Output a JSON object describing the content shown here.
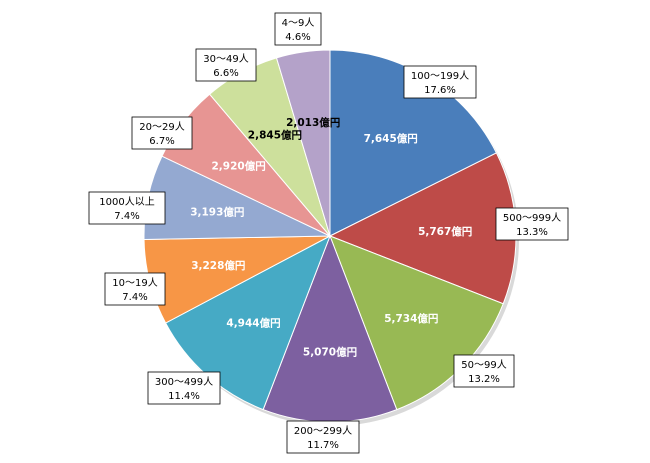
{
  "chart_data": {
    "type": "pie",
    "title": "",
    "slices": [
      {
        "category": "100〜199人",
        "value": 7645,
        "value_label": "7,645億円",
        "percent_label": "17.6%",
        "color": "#4a7ebb",
        "value_text_color": "#ffffff"
      },
      {
        "category": "500〜999人",
        "value": 5767,
        "value_label": "5,767億円",
        "percent_label": "13.3%",
        "color": "#be4b48",
        "value_text_color": "#ffffff"
      },
      {
        "category": "50〜99人",
        "value": 5734,
        "value_label": "5,734億円",
        "percent_label": "13.2%",
        "color": "#98b954",
        "value_text_color": "#ffffff"
      },
      {
        "category": "200〜299人",
        "value": 5070,
        "value_label": "5,070億円",
        "percent_label": "11.7%",
        "color": "#7d60a0",
        "value_text_color": "#ffffff"
      },
      {
        "category": "300〜499人",
        "value": 4944,
        "value_label": "4,944億円",
        "percent_label": "11.4%",
        "color": "#46aac5",
        "value_text_color": "#ffffff"
      },
      {
        "category": "10〜19人",
        "value": 3228,
        "value_label": "3,228億円",
        "percent_label": "7.4%",
        "color": "#f79646",
        "value_text_color": "#ffffff"
      },
      {
        "category": "1000人以上",
        "value": 3193,
        "value_label": "3,193億円",
        "percent_label": "7.4%",
        "color": "#94a9d1",
        "value_text_color": "#ffffff"
      },
      {
        "category": "20〜29人",
        "value": 2920,
        "value_label": "2,920億円",
        "percent_label": "6.7%",
        "color": "#e79593",
        "value_text_color": "#ffffff"
      },
      {
        "category": "30〜49人",
        "value": 2845,
        "value_label": "2,845億円",
        "percent_label": "6.6%",
        "color": "#cde09c",
        "value_text_color": "#000000"
      },
      {
        "category": "4〜9人",
        "value": 2013,
        "value_label": "2,013億円",
        "percent_label": "4.6%",
        "color": "#b4a2c9",
        "value_text_color": "#000000"
      }
    ]
  }
}
